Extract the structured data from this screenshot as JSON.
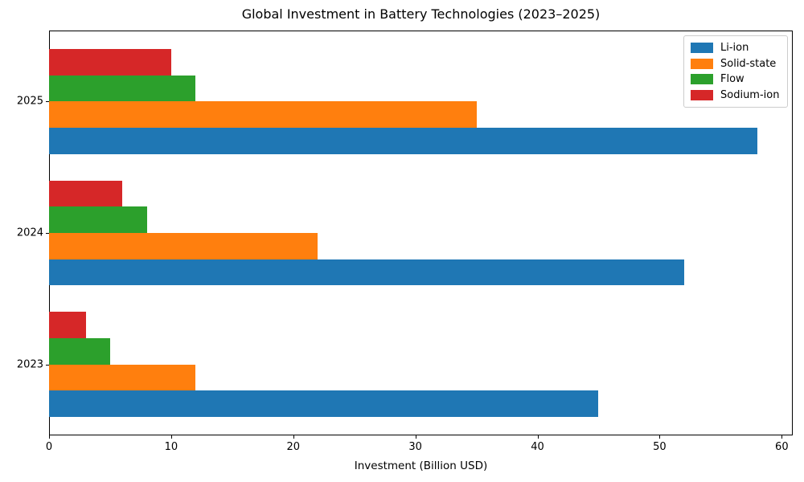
{
  "chart_data": {
    "type": "bar",
    "orientation": "horizontal",
    "title": "Global Investment in Battery Technologies (2023–2025)",
    "xlabel": "Investment (Billion USD)",
    "ylabel": "",
    "categories": [
      "2023",
      "2024",
      "2025"
    ],
    "categories_order": "bottom-to-top",
    "series": [
      {
        "name": "Li-ion",
        "color": "#1f77b4",
        "values": [
          45,
          52,
          58
        ]
      },
      {
        "name": "Solid-state",
        "color": "#ff7f0e",
        "values": [
          12,
          22,
          35
        ]
      },
      {
        "name": "Flow",
        "color": "#2ca02c",
        "values": [
          5,
          8,
          12
        ]
      },
      {
        "name": "Sodium-ion",
        "color": "#d62728",
        "values": [
          3,
          6,
          10
        ]
      }
    ],
    "x_ticks": [
      0,
      10,
      20,
      30,
      40,
      50,
      60
    ],
    "xlim": [
      0,
      60.9
    ],
    "grid": false,
    "legend_position": "upper right"
  }
}
